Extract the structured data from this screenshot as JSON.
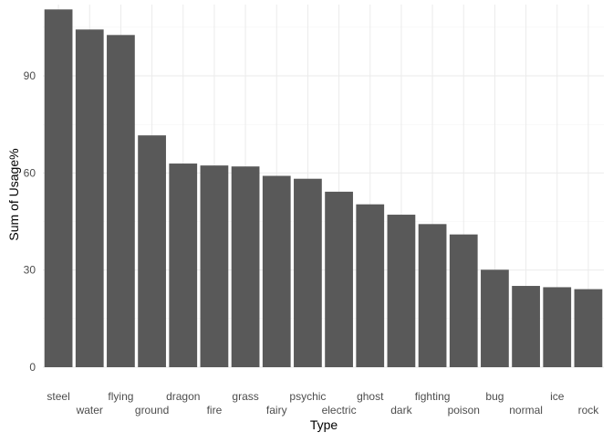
{
  "chart_data": {
    "type": "bar",
    "title": "",
    "xlabel": "Type",
    "ylabel": "Sum of Usage%",
    "categories": [
      "steel",
      "water",
      "flying",
      "ground",
      "dragon",
      "fire",
      "grass",
      "fairy",
      "psychic",
      "electric",
      "ghost",
      "dark",
      "fighting",
      "poison",
      "bug",
      "normal",
      "ice",
      "rock"
    ],
    "values": [
      110.5,
      104.3,
      102.6,
      71.6,
      62.9,
      62.3,
      62.0,
      59.1,
      58.2,
      54.2,
      50.3,
      47.1,
      44.2,
      41.0,
      30.1,
      25.1,
      24.7,
      24.1
    ],
    "ylim": [
      0,
      112
    ],
    "yticks": [
      0,
      30,
      60,
      90
    ],
    "grid": true,
    "bar_color": "#595959",
    "grid_color": "#ebebeb"
  }
}
